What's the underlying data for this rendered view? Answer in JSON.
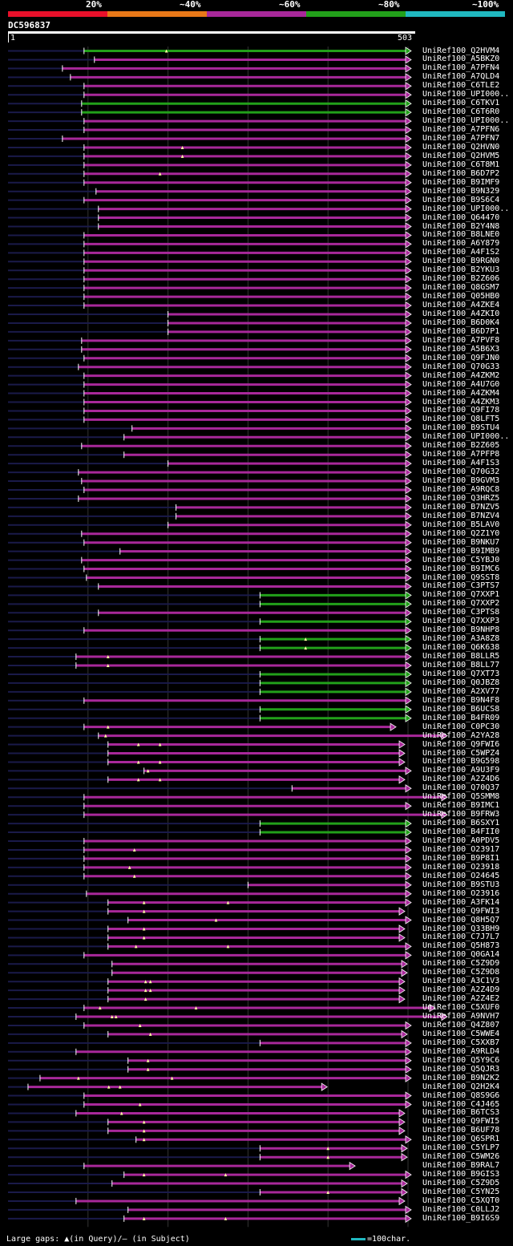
{
  "legend": {
    "bands": [
      {
        "label": "20%",
        "color": "#e8102a"
      },
      {
        "label": "~40%",
        "color": "#e87818"
      },
      {
        "label": "~60%",
        "color": "#a8289a"
      },
      {
        "label": "~80%",
        "color": "#22a01a"
      },
      {
        "label": "~100%",
        "color": "#20b8c0"
      }
    ]
  },
  "query": {
    "id": "DC596837",
    "start": "1",
    "end": "503",
    "length": 503
  },
  "footer": {
    "gaps": "Large gaps: ▲(in Query)/– (in Subject)",
    "scale": "=100char."
  },
  "colors": {
    "magenta": "#a8289a",
    "green": "#22a01a",
    "navy": "#1a1a4a"
  },
  "hits": [
    {
      "name": "UniRef100_Q2HVM4",
      "s": 95,
      "e": 503,
      "c": "g",
      "m": [
        198
      ]
    },
    {
      "name": "UniRef100_A5BKZ0",
      "s": 108,
      "e": 503,
      "c": "m",
      "m": []
    },
    {
      "name": "UniRef100_A7PFN4",
      "s": 68,
      "e": 503,
      "c": "m",
      "m": []
    },
    {
      "name": "UniRef100_A7QLD4",
      "s": 78,
      "e": 503,
      "c": "m",
      "m": []
    },
    {
      "name": "UniRef100_C6TLE2",
      "s": 95,
      "e": 503,
      "c": "m",
      "m": []
    },
    {
      "name": "UniRef100_UPI000..",
      "s": 95,
      "e": 503,
      "c": "m",
      "m": []
    },
    {
      "name": "UniRef100_C6TKV1",
      "s": 92,
      "e": 503,
      "c": "g",
      "m": []
    },
    {
      "name": "UniRef100_C6T6R0",
      "s": 92,
      "e": 503,
      "c": "g",
      "m": []
    },
    {
      "name": "UniRef100_UPI000..",
      "s": 95,
      "e": 503,
      "c": "m",
      "m": []
    },
    {
      "name": "UniRef100_A7PFN6",
      "s": 95,
      "e": 503,
      "c": "m",
      "m": []
    },
    {
      "name": "UniRef100_A7PFN7",
      "s": 68,
      "e": 503,
      "c": "m",
      "m": []
    },
    {
      "name": "UniRef100_Q2HVN0",
      "s": 95,
      "e": 503,
      "c": "m",
      "m": [
        218
      ]
    },
    {
      "name": "UniRef100_Q2HVM5",
      "s": 95,
      "e": 503,
      "c": "m",
      "m": [
        218
      ]
    },
    {
      "name": "UniRef100_C6T8M1",
      "s": 95,
      "e": 503,
      "c": "m",
      "m": []
    },
    {
      "name": "UniRef100_B6D7P2",
      "s": 95,
      "e": 503,
      "c": "m",
      "m": [
        190
      ]
    },
    {
      "name": "UniRef100_B9IMF9",
      "s": 95,
      "e": 503,
      "c": "m",
      "m": []
    },
    {
      "name": "UniRef100_B9N329",
      "s": 110,
      "e": 503,
      "c": "m",
      "m": []
    },
    {
      "name": "UniRef100_B9S6C4",
      "s": 95,
      "e": 503,
      "c": "m",
      "m": []
    },
    {
      "name": "UniRef100_UPI000..",
      "s": 113,
      "e": 503,
      "c": "m",
      "m": []
    },
    {
      "name": "UniRef100_Q64470",
      "s": 113,
      "e": 503,
      "c": "m",
      "m": []
    },
    {
      "name": "UniRef100_B2Y4N8",
      "s": 113,
      "e": 503,
      "c": "m",
      "m": []
    },
    {
      "name": "UniRef100_B8LNE0",
      "s": 95,
      "e": 503,
      "c": "m",
      "m": []
    },
    {
      "name": "UniRef100_A6Y879",
      "s": 95,
      "e": 503,
      "c": "m",
      "m": []
    },
    {
      "name": "UniRef100_A4F1S2",
      "s": 95,
      "e": 503,
      "c": "m",
      "m": []
    },
    {
      "name": "UniRef100_B9RGN0",
      "s": 95,
      "e": 503,
      "c": "m",
      "m": []
    },
    {
      "name": "UniRef100_B2YKU3",
      "s": 95,
      "e": 503,
      "c": "m",
      "m": []
    },
    {
      "name": "UniRef100_B2Z606",
      "s": 95,
      "e": 503,
      "c": "m",
      "m": []
    },
    {
      "name": "UniRef100_Q8GSM7",
      "s": 95,
      "e": 503,
      "c": "m",
      "m": []
    },
    {
      "name": "UniRef100_Q05HB0",
      "s": 95,
      "e": 503,
      "c": "m",
      "m": []
    },
    {
      "name": "UniRef100_A4ZKE4",
      "s": 95,
      "e": 503,
      "c": "m",
      "m": []
    },
    {
      "name": "UniRef100_A4ZKI0",
      "s": 200,
      "e": 503,
      "c": "m",
      "m": []
    },
    {
      "name": "UniRef100_B6D0K4",
      "s": 200,
      "e": 503,
      "c": "m",
      "m": []
    },
    {
      "name": "UniRef100_B6D7P1",
      "s": 200,
      "e": 503,
      "c": "m",
      "m": []
    },
    {
      "name": "UniRef100_A7PVF8",
      "s": 92,
      "e": 503,
      "c": "m",
      "m": []
    },
    {
      "name": "UniRef100_A5B6X3",
      "s": 92,
      "e": 503,
      "c": "m",
      "m": []
    },
    {
      "name": "UniRef100_Q9FJN0",
      "s": 95,
      "e": 503,
      "c": "m",
      "m": []
    },
    {
      "name": "UniRef100_Q70G33",
      "s": 88,
      "e": 503,
      "c": "m",
      "m": []
    },
    {
      "name": "UniRef100_A4ZKM2",
      "s": 95,
      "e": 503,
      "c": "m",
      "m": []
    },
    {
      "name": "UniRef100_A4U7G0",
      "s": 95,
      "e": 503,
      "c": "m",
      "m": []
    },
    {
      "name": "UniRef100_A4ZKM4",
      "s": 95,
      "e": 503,
      "c": "m",
      "m": []
    },
    {
      "name": "UniRef100_A4ZKM3",
      "s": 95,
      "e": 503,
      "c": "m",
      "m": []
    },
    {
      "name": "UniRef100_Q9FI78",
      "s": 95,
      "e": 503,
      "c": "m",
      "m": []
    },
    {
      "name": "UniRef100_Q8LFT5",
      "s": 95,
      "e": 503,
      "c": "m",
      "m": []
    },
    {
      "name": "UniRef100_B9STU4",
      "s": 155,
      "e": 503,
      "c": "m",
      "m": []
    },
    {
      "name": "UniRef100_UPI000..",
      "s": 145,
      "e": 503,
      "c": "m",
      "m": []
    },
    {
      "name": "UniRef100_B2Z605",
      "s": 92,
      "e": 503,
      "c": "m",
      "m": []
    },
    {
      "name": "UniRef100_A7PFP8",
      "s": 145,
      "e": 503,
      "c": "m",
      "m": []
    },
    {
      "name": "UniRef100_A4F1S3",
      "s": 200,
      "e": 503,
      "c": "m",
      "m": []
    },
    {
      "name": "UniRef100_Q70G32",
      "s": 88,
      "e": 503,
      "c": "m",
      "m": []
    },
    {
      "name": "UniRef100_B9GVM3",
      "s": 92,
      "e": 503,
      "c": "m",
      "m": []
    },
    {
      "name": "UniRef100_A9RQC8",
      "s": 95,
      "e": 503,
      "c": "m",
      "m": []
    },
    {
      "name": "UniRef100_Q3HRZ5",
      "s": 88,
      "e": 503,
      "c": "m",
      "m": []
    },
    {
      "name": "UniRef100_B7NZV5",
      "s": 210,
      "e": 503,
      "c": "m",
      "m": []
    },
    {
      "name": "UniRef100_B7NZV4",
      "s": 210,
      "e": 503,
      "c": "m",
      "m": []
    },
    {
      "name": "UniRef100_B5LAV0",
      "s": 200,
      "e": 503,
      "c": "m",
      "m": []
    },
    {
      "name": "UniRef100_Q2Z1Y0",
      "s": 92,
      "e": 503,
      "c": "m",
      "m": []
    },
    {
      "name": "UniRef100_B9NKU7",
      "s": 95,
      "e": 503,
      "c": "m",
      "m": []
    },
    {
      "name": "UniRef100_B9IMB9",
      "s": 140,
      "e": 503,
      "c": "m",
      "m": []
    },
    {
      "name": "UniRef100_C5YBJ0",
      "s": 92,
      "e": 503,
      "c": "m",
      "m": []
    },
    {
      "name": "UniRef100_B9IMC6",
      "s": 95,
      "e": 503,
      "c": "m",
      "m": []
    },
    {
      "name": "UniRef100_Q9SST8",
      "s": 98,
      "e": 503,
      "c": "m",
      "m": []
    },
    {
      "name": "UniRef100_C3PTS7",
      "s": 113,
      "e": 503,
      "c": "m",
      "m": []
    },
    {
      "name": "UniRef100_Q7XXP1",
      "s": 315,
      "e": 503,
      "c": "g",
      "m": []
    },
    {
      "name": "UniRef100_Q7XXP2",
      "s": 315,
      "e": 503,
      "c": "g",
      "m": []
    },
    {
      "name": "UniRef100_C3PTS8",
      "s": 113,
      "e": 503,
      "c": "m",
      "m": []
    },
    {
      "name": "UniRef100_Q7XXP3",
      "s": 315,
      "e": 503,
      "c": "g",
      "m": []
    },
    {
      "name": "UniRef100_B9NHP8",
      "s": 95,
      "e": 503,
      "c": "m",
      "m": []
    },
    {
      "name": "UniRef100_A3A8Z8",
      "s": 315,
      "e": 503,
      "c": "g",
      "m": [
        372
      ]
    },
    {
      "name": "UniRef100_Q6K638",
      "s": 315,
      "e": 503,
      "c": "g",
      "m": [
        372
      ]
    },
    {
      "name": "UniRef100_B8LLR5",
      "s": 85,
      "e": 503,
      "c": "m",
      "m": [
        125
      ]
    },
    {
      "name": "UniRef100_B8LL77",
      "s": 85,
      "e": 503,
      "c": "m",
      "m": [
        125
      ]
    },
    {
      "name": "UniRef100_Q7XT73",
      "s": 315,
      "e": 503,
      "c": "g",
      "m": []
    },
    {
      "name": "UniRef100_Q0JBZ8",
      "s": 315,
      "e": 503,
      "c": "g",
      "m": []
    },
    {
      "name": "UniRef100_A2XV77",
      "s": 315,
      "e": 503,
      "c": "g",
      "m": []
    },
    {
      "name": "UniRef100_B9N4F8",
      "s": 95,
      "e": 503,
      "c": "m",
      "m": []
    },
    {
      "name": "UniRef100_B6UCS8",
      "s": 315,
      "e": 503,
      "c": "g",
      "m": []
    },
    {
      "name": "UniRef100_B4FR09",
      "s": 315,
      "e": 503,
      "c": "g",
      "m": []
    },
    {
      "name": "UniRef100_C0PC30",
      "s": 95,
      "e": 484,
      "c": "m",
      "m": [
        125
      ]
    },
    {
      "name": "UniRef100_A2YA28",
      "s": 113,
      "e": 553,
      "c": "m",
      "m": [
        122
      ]
    },
    {
      "name": "UniRef100_Q9FWI6",
      "s": 125,
      "e": 495,
      "c": "m",
      "m": [
        163,
        190
      ]
    },
    {
      "name": "UniRef100_C5WPZ4",
      "s": 125,
      "e": 495,
      "c": "m",
      "m": []
    },
    {
      "name": "UniRef100_B9G598",
      "s": 125,
      "e": 495,
      "c": "m",
      "m": [
        163,
        190
      ]
    },
    {
      "name": "UniRef100_A9U3F9",
      "s": 170,
      "e": 503,
      "c": "m",
      "m": [
        175
      ]
    },
    {
      "name": "UniRef100_A2Z4D6",
      "s": 125,
      "e": 495,
      "c": "m",
      "m": [
        163,
        190
      ]
    },
    {
      "name": "UniRef100_Q70Q37",
      "s": 355,
      "e": 503,
      "c": "m",
      "m": []
    },
    {
      "name": "UniRef100_Q5SMM8",
      "s": 95,
      "e": 553,
      "c": "m",
      "m": []
    },
    {
      "name": "UniRef100_B9IMC1",
      "s": 95,
      "e": 503,
      "c": "m",
      "m": []
    },
    {
      "name": "UniRef100_B9FRW3",
      "s": 95,
      "e": 553,
      "c": "m",
      "m": []
    },
    {
      "name": "UniRef100_B6SXY1",
      "s": 315,
      "e": 503,
      "c": "g",
      "m": []
    },
    {
      "name": "UniRef100_B4FII0",
      "s": 315,
      "e": 503,
      "c": "g",
      "m": []
    },
    {
      "name": "UniRef100_A0PDV5",
      "s": 95,
      "e": 503,
      "c": "m",
      "m": []
    },
    {
      "name": "UniRef100_O23917",
      "s": 95,
      "e": 503,
      "c": "m",
      "m": [
        158
      ]
    },
    {
      "name": "UniRef100_B9P8I1",
      "s": 95,
      "e": 503,
      "c": "m",
      "m": []
    },
    {
      "name": "UniRef100_O23918",
      "s": 95,
      "e": 503,
      "c": "m",
      "m": [
        152
      ]
    },
    {
      "name": "UniRef100_O24645",
      "s": 95,
      "e": 503,
      "c": "m",
      "m": [
        158
      ]
    },
    {
      "name": "UniRef100_B9STU3",
      "s": 300,
      "e": 503,
      "c": "m",
      "m": []
    },
    {
      "name": "UniRef100_O23916",
      "s": 98,
      "e": 503,
      "c": "m",
      "m": []
    },
    {
      "name": "UniRef100_A3FK14",
      "s": 125,
      "e": 503,
      "c": "m",
      "m": [
        170,
        275
      ]
    },
    {
      "name": "UniRef100_Q9FWI3",
      "s": 125,
      "e": 495,
      "c": "m",
      "m": [
        170
      ]
    },
    {
      "name": "UniRef100_Q8H5Q7",
      "s": 150,
      "e": 503,
      "c": "m",
      "m": [
        260
      ]
    },
    {
      "name": "UniRef100_Q33BH9",
      "s": 125,
      "e": 495,
      "c": "m",
      "m": [
        170
      ]
    },
    {
      "name": "UniRef100_C7J7L7",
      "s": 125,
      "e": 495,
      "c": "m",
      "m": [
        170
      ]
    },
    {
      "name": "UniRef100_Q5H873",
      "s": 125,
      "e": 503,
      "c": "m",
      "m": [
        160,
        275
      ]
    },
    {
      "name": "UniRef100_Q0GA14",
      "s": 95,
      "e": 503,
      "c": "m",
      "m": []
    },
    {
      "name": "UniRef100_C5Z9D9",
      "s": 130,
      "e": 498,
      "c": "m",
      "m": []
    },
    {
      "name": "UniRef100_C5Z9D8",
      "s": 130,
      "e": 498,
      "c": "m",
      "m": []
    },
    {
      "name": "UniRef100_A3C1V3",
      "s": 125,
      "e": 495,
      "c": "m",
      "m": [
        172,
        178
      ]
    },
    {
      "name": "UniRef100_A2Z4D9",
      "s": 125,
      "e": 495,
      "c": "m",
      "m": [
        172,
        178
      ]
    },
    {
      "name": "UniRef100_A2Z4E2",
      "s": 125,
      "e": 495,
      "c": "m",
      "m": [
        172
      ]
    },
    {
      "name": "UniRef100_C5XUF0",
      "s": 95,
      "e": 533,
      "c": "m",
      "m": [
        115,
        235
      ]
    },
    {
      "name": "UniRef100_A9NVH7",
      "s": 85,
      "e": 553,
      "c": "m",
      "m": [
        130,
        135
      ]
    },
    {
      "name": "UniRef100_Q4Z807",
      "s": 95,
      "e": 503,
      "c": "m",
      "m": [
        165
      ]
    },
    {
      "name": "UniRef100_C5WWE4",
      "s": 125,
      "e": 498,
      "c": "m",
      "m": [
        178
      ]
    },
    {
      "name": "UniRef100_C5XXB7",
      "s": 315,
      "e": 503,
      "c": "m",
      "m": []
    },
    {
      "name": "UniRef100_A9RLD4",
      "s": 85,
      "e": 503,
      "c": "m",
      "m": []
    },
    {
      "name": "UniRef100_Q5Y9C6",
      "s": 150,
      "e": 503,
      "c": "m",
      "m": [
        175
      ]
    },
    {
      "name": "UniRef100_Q5QJR3",
      "s": 150,
      "e": 503,
      "c": "m",
      "m": [
        175
      ]
    },
    {
      "name": "UniRef100_B9N2K2",
      "s": 40,
      "e": 503,
      "c": "m",
      "m": [
        88,
        205
      ]
    },
    {
      "name": "UniRef100_Q2H2K4",
      "s": 25,
      "e": 398,
      "c": "m",
      "m": [
        126,
        140
      ]
    },
    {
      "name": "UniRef100_Q8S9G6",
      "s": 95,
      "e": 503,
      "c": "m",
      "m": []
    },
    {
      "name": "UniRef100_C4J465",
      "s": 95,
      "e": 503,
      "c": "m",
      "m": [
        165
      ]
    },
    {
      "name": "UniRef100_B6TCS3",
      "s": 85,
      "e": 495,
      "c": "m",
      "m": [
        142
      ]
    },
    {
      "name": "UniRef100_Q9FWI5",
      "s": 125,
      "e": 495,
      "c": "m",
      "m": [
        170
      ]
    },
    {
      "name": "UniRef100_B6UF78",
      "s": 125,
      "e": 495,
      "c": "m",
      "m": [
        170
      ]
    },
    {
      "name": "UniRef100_Q6SPR1",
      "s": 160,
      "e": 503,
      "c": "m",
      "m": [
        170
      ]
    },
    {
      "name": "UniRef100_C5YLP7",
      "s": 315,
      "e": 498,
      "c": "m",
      "m": [
        400
      ]
    },
    {
      "name": "UniRef100_C5WM26",
      "s": 315,
      "e": 498,
      "c": "m",
      "m": [
        400
      ]
    },
    {
      "name": "UniRef100_B9RAL7",
      "s": 95,
      "e": 433,
      "c": "m",
      "m": []
    },
    {
      "name": "UniRef100_B9GIS3",
      "s": 145,
      "e": 503,
      "c": "m",
      "m": [
        170,
        272
      ]
    },
    {
      "name": "UniRef100_C5Z9D5",
      "s": 130,
      "e": 498,
      "c": "m",
      "m": []
    },
    {
      "name": "UniRef100_C5YN25",
      "s": 315,
      "e": 498,
      "c": "m",
      "m": [
        400
      ]
    },
    {
      "name": "UniRef100_C5XQT0",
      "s": 85,
      "e": 495,
      "c": "m",
      "m": []
    },
    {
      "name": "UniRef100_C0LLJ2",
      "s": 150,
      "e": 503,
      "c": "m",
      "m": []
    },
    {
      "name": "UniRef100_B9I6S9",
      "s": 145,
      "e": 503,
      "c": "m",
      "m": [
        170,
        272
      ]
    }
  ]
}
